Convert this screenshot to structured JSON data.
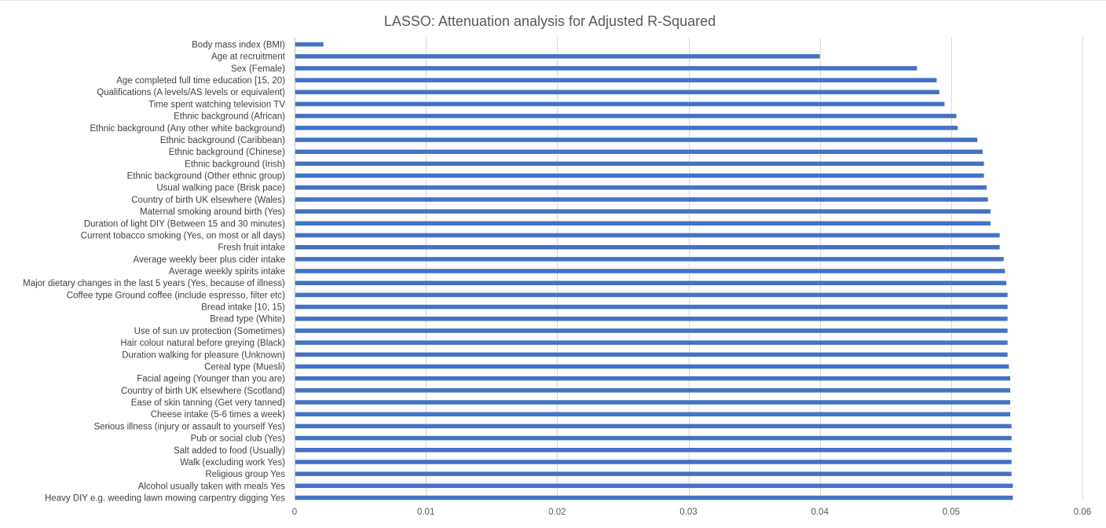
{
  "colors": {
    "bar": "#4472c4",
    "gridline": "#d9d9d9",
    "axis": "#bfbfbf",
    "title": "#595959",
    "label": "#404040"
  },
  "chart_data": {
    "type": "bar",
    "orientation": "horizontal",
    "title": "LASSO: Attenuation analysis for Adjusted R-Squared",
    "xlabel": "",
    "ylabel": "",
    "xlim": [
      0,
      0.06
    ],
    "xticks": [
      0,
      0.01,
      0.02,
      0.03,
      0.04,
      0.05,
      0.06
    ],
    "xtick_labels": [
      "0",
      "0.01",
      "0.02",
      "0.03",
      "0.04",
      "0.05",
      "0.06"
    ],
    "grid": true,
    "legend": "none",
    "categories": [
      "Body mass index (BMI)",
      "Age at recruitment",
      "Sex (Female)",
      "Age completed full time education [15, 20)",
      "Qualifications (A levels/AS levels or equivalent)",
      "Time spent watching television TV",
      "Ethnic background (African)",
      "Ethnic background (Any other white background)",
      "Ethnic background (Caribbean)",
      "Ethnic background (Chinese)",
      "Ethnic background (Irish)",
      "Ethnic background (Other ethnic group)",
      "Usual walking pace (Brisk pace)",
      "Country of birth UK elsewhere (Wales)",
      "Maternal smoking around birth (Yes)",
      "Duration of light DIY (Between 15 and 30 minutes)",
      "Current tobacco smoking (Yes, on most or all days)",
      "Fresh fruit intake",
      "Average weekly beer plus cider intake",
      "Average weekly spirits intake",
      "Major dietary changes in the last 5 years (Yes, because of illness)",
      "Coffee type Ground coffee (include espresso, filter etc)",
      "Bread intake [10, 15)",
      "Bread type (White)",
      "Use of sun uv protection (Sometimes)",
      "Hair colour natural before greying (Black)",
      "Duration walking for pleasure (Unknown)",
      "Cereal type (Muesli)",
      "Facial ageing (Younger than you are)",
      "Country of birth UK elsewhere (Scotland)",
      "Ease of skin tanning (Get very tanned)",
      "Cheese intake (5-6 times a week)",
      "Serious illness (injury or assault to yourself Yes)",
      "Pub or social club (Yes)",
      "Salt added to food (Usually)",
      "Walk (excluding work Yes)",
      "Religious group Yes",
      "Alcohol usually taken with meals Yes",
      "Heavy DIY  e.g.  weeding lawn mowing carpentry digging Yes"
    ],
    "values": [
      0.0022,
      0.04,
      0.0474,
      0.0489,
      0.0491,
      0.0495,
      0.0504,
      0.0505,
      0.052,
      0.0524,
      0.0525,
      0.0525,
      0.0527,
      0.0528,
      0.053,
      0.053,
      0.0537,
      0.0537,
      0.054,
      0.0541,
      0.0542,
      0.0543,
      0.0543,
      0.0543,
      0.0543,
      0.0543,
      0.0543,
      0.0544,
      0.0545,
      0.0545,
      0.0545,
      0.0545,
      0.0546,
      0.0546,
      0.0546,
      0.0546,
      0.0546,
      0.0547,
      0.0547
    ]
  }
}
